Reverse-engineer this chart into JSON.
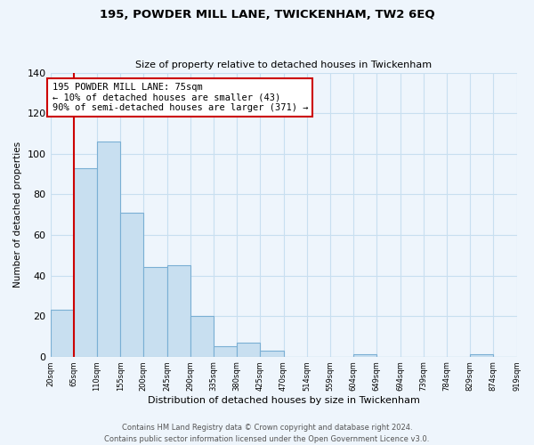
{
  "title": "195, POWDER MILL LANE, TWICKENHAM, TW2 6EQ",
  "subtitle": "Size of property relative to detached houses in Twickenham",
  "xlabel": "Distribution of detached houses by size in Twickenham",
  "ylabel": "Number of detached properties",
  "bar_values": [
    23,
    93,
    106,
    71,
    44,
    45,
    20,
    5,
    7,
    3,
    0,
    0,
    0,
    1,
    0,
    0,
    0,
    0,
    1,
    0
  ],
  "bar_labels": [
    "20sqm",
    "65sqm",
    "110sqm",
    "155sqm",
    "200sqm",
    "245sqm",
    "290sqm",
    "335sqm",
    "380sqm",
    "425sqm",
    "470sqm",
    "514sqm",
    "559sqm",
    "604sqm",
    "649sqm",
    "694sqm",
    "739sqm",
    "784sqm",
    "829sqm",
    "874sqm",
    "919sqm"
  ],
  "bar_color": "#c8dff0",
  "bar_edge_color": "#7aafd4",
  "grid_color": "#c8dff0",
  "background_color": "#eef5fc",
  "vline_color": "#cc0000",
  "annotation_text": "195 POWDER MILL LANE: 75sqm\n← 10% of detached houses are smaller (43)\n90% of semi-detached houses are larger (371) →",
  "annotation_box_color": "white",
  "annotation_box_edge": "#cc0000",
  "ylim": [
    0,
    140
  ],
  "yticks": [
    0,
    20,
    40,
    60,
    80,
    100,
    120,
    140
  ],
  "footer_line1": "Contains HM Land Registry data © Crown copyright and database right 2024.",
  "footer_line2": "Contains public sector information licensed under the Open Government Licence v3.0.",
  "num_bars": 20
}
